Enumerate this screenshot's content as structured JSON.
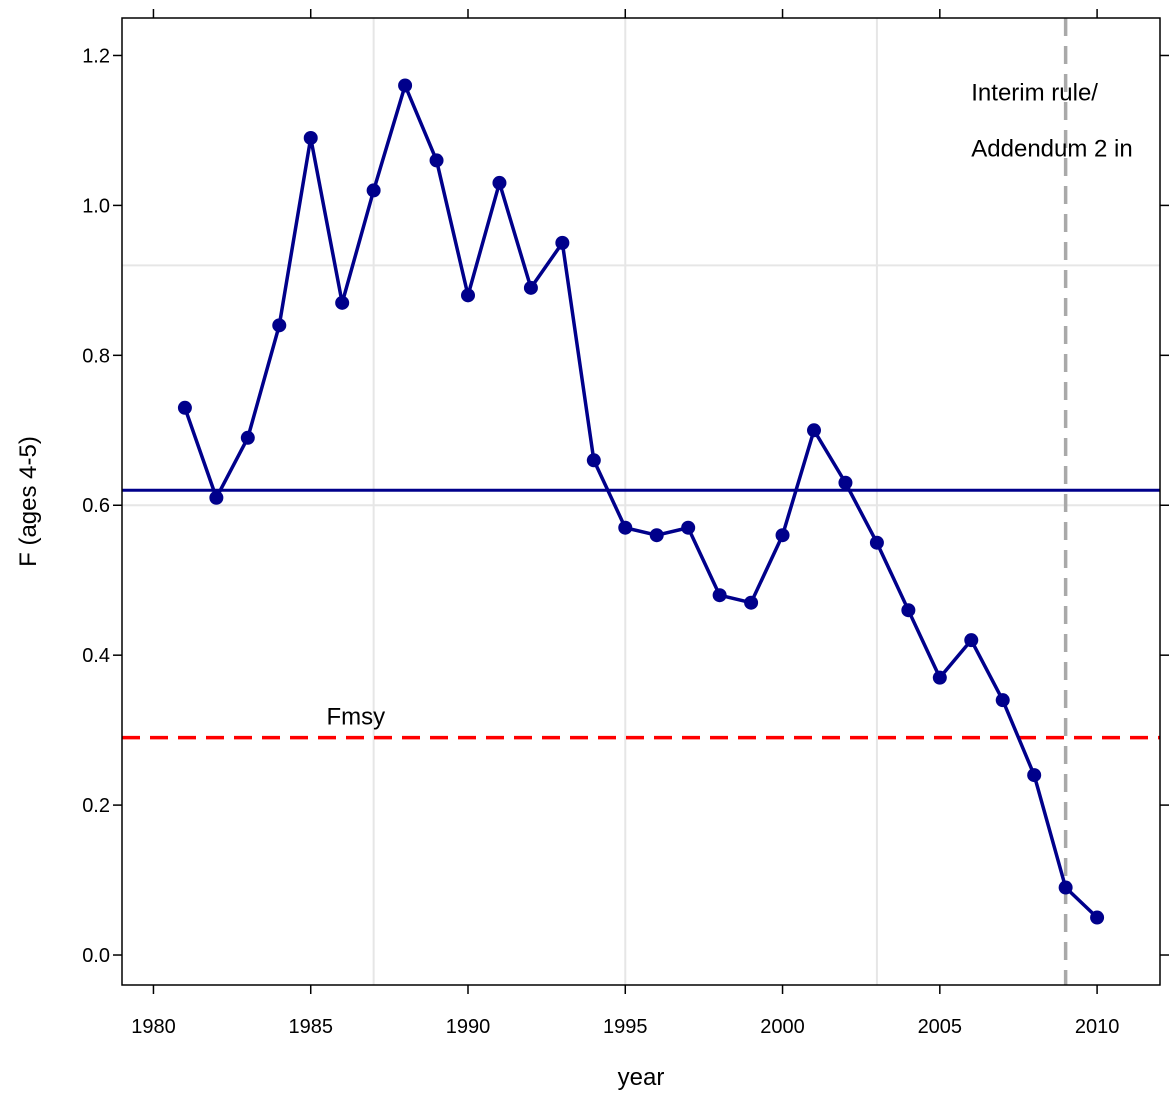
{
  "chart_data": {
    "type": "line",
    "xlabel": "year",
    "ylabel": "F (ages 4-5)",
    "xlim": [
      1979,
      2012
    ],
    "ylim": [
      -0.04,
      1.25
    ],
    "x_ticks": [
      1980,
      1985,
      1990,
      1995,
      2000,
      2005,
      2010
    ],
    "x_tick_labels": [
      "1980",
      "1985",
      "1990",
      "1995",
      "2000",
      "2005",
      "2010"
    ],
    "y_ticks": [
      0.0,
      0.2,
      0.4,
      0.6,
      0.8,
      1.0,
      1.2
    ],
    "y_tick_labels": [
      "0.0",
      "0.2",
      "0.4",
      "0.6",
      "0.8",
      "1.0",
      "1.2"
    ],
    "grid": true,
    "grid_x": [
      1987,
      1995,
      2003
    ],
    "grid_y": [
      0.92,
      0.6
    ],
    "series": [
      {
        "color": "#00008B",
        "marker": "circle",
        "x": [
          1981,
          1982,
          1983,
          1984,
          1985,
          1986,
          1987,
          1988,
          1989,
          1990,
          1991,
          1992,
          1993,
          1994,
          1995,
          1996,
          1997,
          1998,
          1999,
          2000,
          2001,
          2002,
          2003,
          2004,
          2005,
          2006,
          2007,
          2008,
          2009,
          2010
        ],
        "y": [
          0.73,
          0.61,
          0.69,
          0.84,
          1.09,
          0.87,
          1.02,
          1.16,
          1.06,
          0.88,
          1.03,
          0.89,
          0.95,
          0.66,
          0.57,
          0.56,
          0.57,
          0.48,
          0.47,
          0.56,
          0.7,
          0.63,
          0.55,
          0.46,
          0.37,
          0.42,
          0.34,
          0.24,
          0.09,
          0.05
        ]
      }
    ],
    "reference_lines": [
      {
        "orientation": "horizontal",
        "value": 0.62,
        "color": "#00008B",
        "style": "solid"
      },
      {
        "orientation": "horizontal",
        "value": 0.29,
        "color": "#FF0000",
        "style": "dashed",
        "label": "Fmsy",
        "label_x": 1985.5
      },
      {
        "orientation": "vertical",
        "value": 2009,
        "color": "#A9A9A9",
        "style": "dashed",
        "label_lines": [
          "Interim rule/",
          "Addendum 2 in"
        ],
        "label_x": 2006
      }
    ]
  }
}
